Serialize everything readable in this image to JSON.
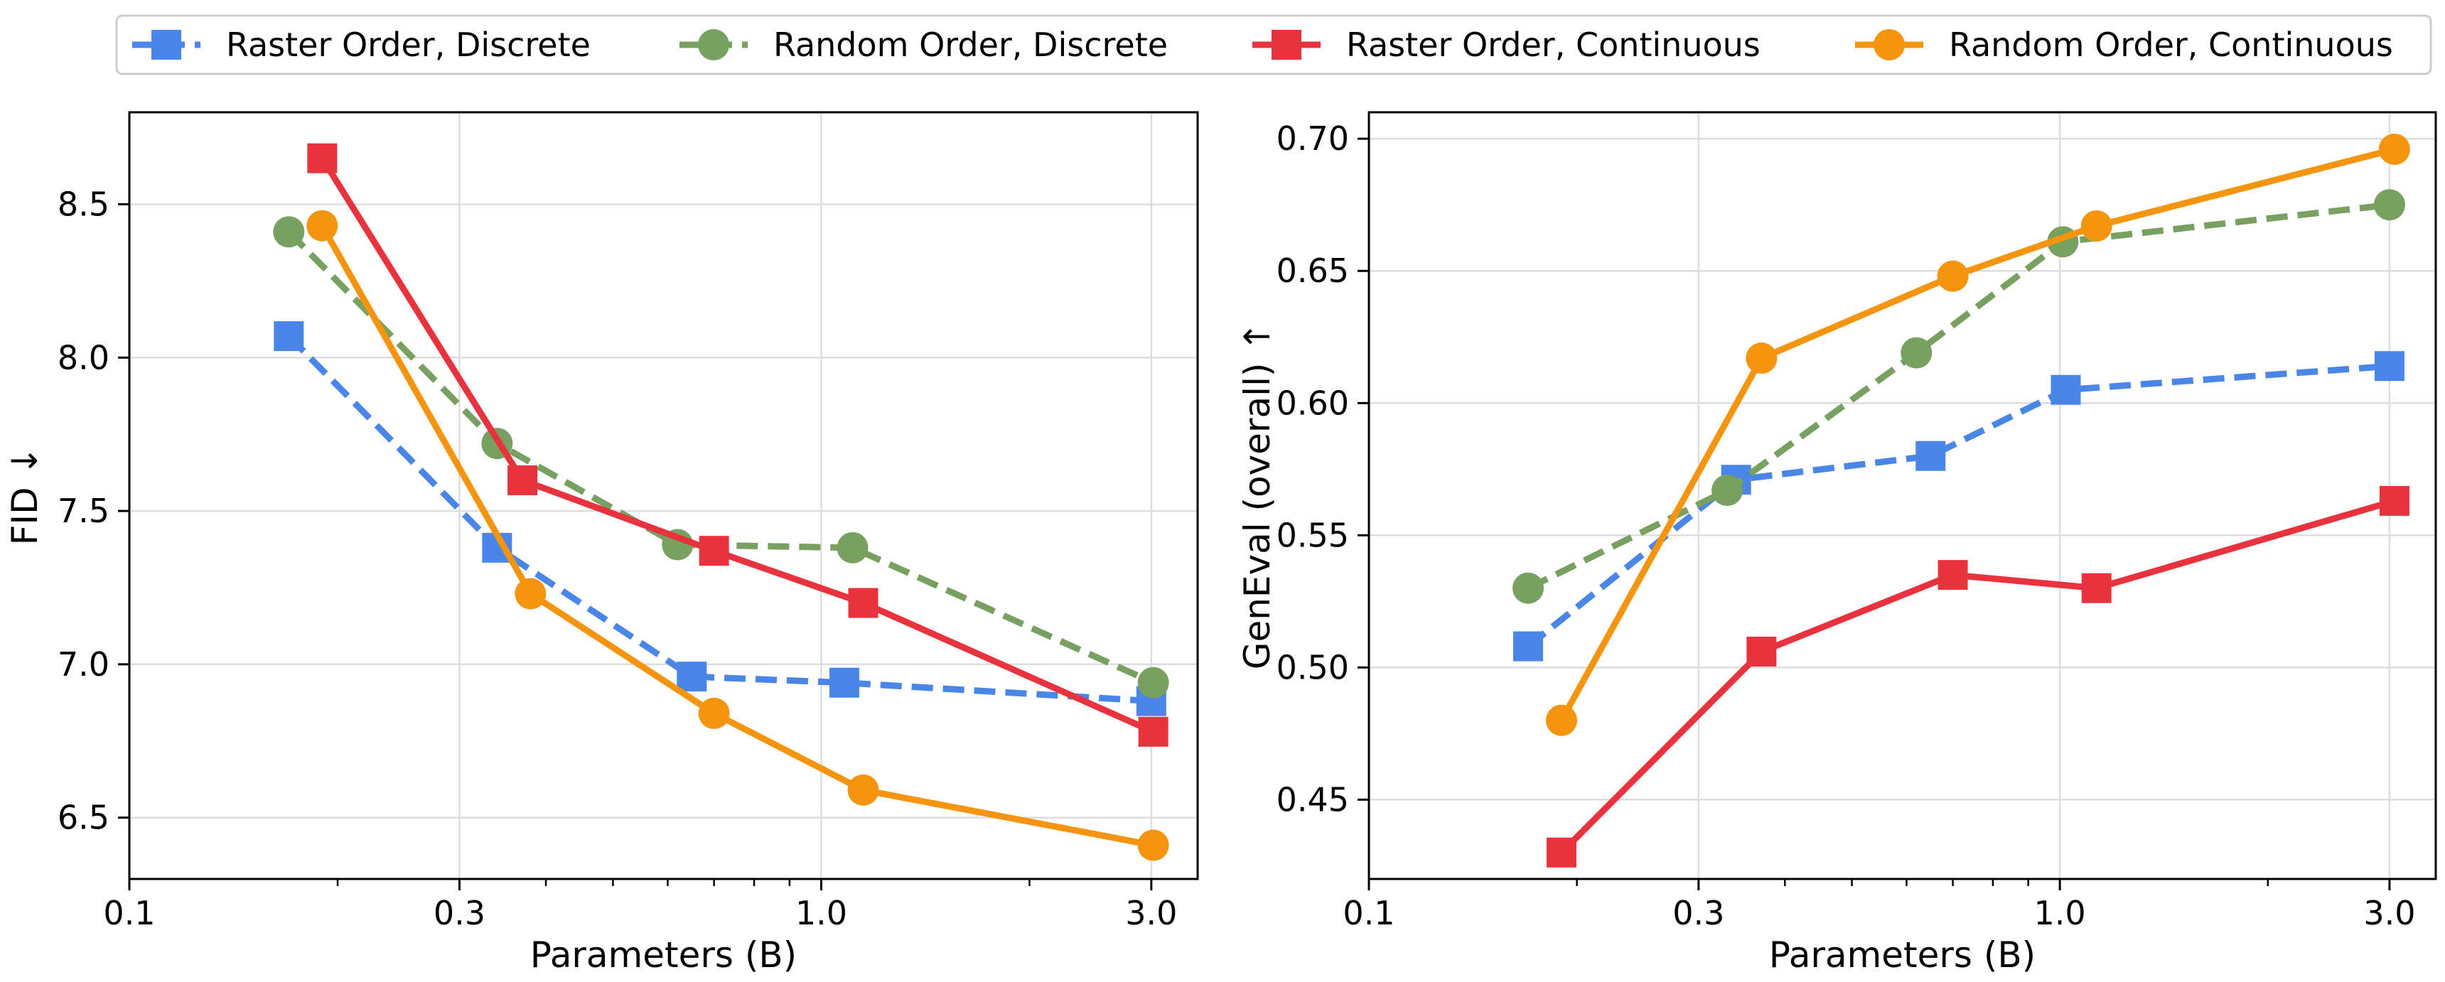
{
  "legend": {
    "placement": "top-center",
    "items": [
      {
        "series": 0,
        "label": "Raster Order, Discrete"
      },
      {
        "series": 1,
        "label": "Random Order, Discrete"
      },
      {
        "series": 2,
        "label": "Raster Order, Continuous"
      },
      {
        "series": 3,
        "label": "Random Order, Continuous"
      }
    ]
  },
  "styles": [
    {
      "color": "#4a86e8",
      "marker": "square",
      "dash": true
    },
    {
      "color": "#77a061",
      "marker": "circle",
      "dash": true
    },
    {
      "color": "#e8333e",
      "marker": "square",
      "dash": false
    },
    {
      "color": "#f5940f",
      "marker": "circle",
      "dash": false
    }
  ],
  "chart_data": [
    {
      "type": "line",
      "xlabel": "Parameters (B)",
      "ylabel": "FID ↓",
      "xscale": "log",
      "xlim": [
        0.1,
        3.5
      ],
      "ylim": [
        6.3,
        8.8
      ],
      "xticks": [
        0.1,
        0.3,
        1.0,
        3.0
      ],
      "xtick_labels": [
        "0.1",
        "0.3",
        "1.0",
        "3.0"
      ],
      "yticks": [
        6.5,
        7.0,
        7.5,
        8.0,
        8.5
      ],
      "ytick_labels": [
        "6.5",
        "7.0",
        "7.5",
        "8.0",
        "8.5"
      ],
      "grid": true,
      "series": [
        {
          "x": [
            0.17,
            0.34,
            0.65,
            1.08,
            3.0
          ],
          "y": [
            8.07,
            7.38,
            6.96,
            6.94,
            6.88
          ]
        },
        {
          "x": [
            0.17,
            0.34,
            0.62,
            1.11,
            3.02
          ],
          "y": [
            8.41,
            7.72,
            7.39,
            7.38,
            6.94
          ]
        },
        {
          "x": [
            0.19,
            0.37,
            0.7,
            1.15,
            3.02
          ],
          "y": [
            8.65,
            7.6,
            7.37,
            7.2,
            6.78
          ]
        },
        {
          "x": [
            0.19,
            0.38,
            0.7,
            1.15,
            3.02
          ],
          "y": [
            8.43,
            7.23,
            6.84,
            6.59,
            6.41
          ]
        }
      ]
    },
    {
      "type": "line",
      "xlabel": "Parameters (B)",
      "ylabel": "GenEval (overall) ↑",
      "xscale": "log",
      "xlim": [
        0.1,
        3.5
      ],
      "ylim": [
        0.42,
        0.71
      ],
      "xticks": [
        0.1,
        0.3,
        1.0,
        3.0
      ],
      "xtick_labels": [
        "0.1",
        "0.3",
        "1.0",
        "3.0"
      ],
      "yticks": [
        0.45,
        0.5,
        0.55,
        0.6,
        0.65,
        0.7
      ],
      "ytick_labels": [
        "0.45",
        "0.50",
        "0.55",
        "0.60",
        "0.65",
        "0.70"
      ],
      "grid": true,
      "series": [
        {
          "x": [
            0.17,
            0.34,
            0.65,
            1.02,
            3.0
          ],
          "y": [
            0.508,
            0.571,
            0.58,
            0.605,
            0.614
          ]
        },
        {
          "x": [
            0.17,
            0.33,
            0.62,
            1.01,
            3.0
          ],
          "y": [
            0.53,
            0.567,
            0.619,
            0.661,
            0.675
          ]
        },
        {
          "x": [
            0.19,
            0.37,
            0.7,
            1.13,
            3.05
          ],
          "y": [
            0.43,
            0.506,
            0.535,
            0.53,
            0.563
          ]
        },
        {
          "x": [
            0.19,
            0.37,
            0.7,
            1.13,
            3.05
          ],
          "y": [
            0.48,
            0.617,
            0.648,
            0.667,
            0.696
          ]
        }
      ]
    }
  ]
}
